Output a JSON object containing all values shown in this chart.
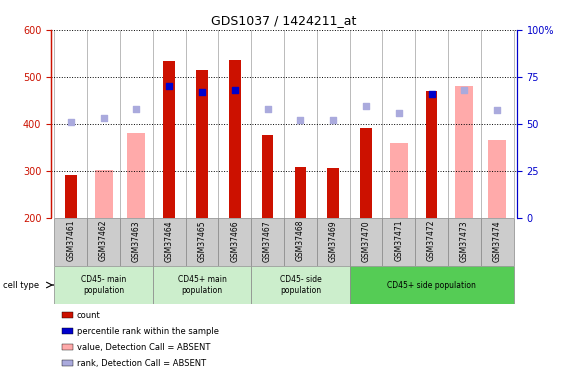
{
  "title": "GDS1037 / 1424211_at",
  "samples": [
    "GSM37461",
    "GSM37462",
    "GSM37463",
    "GSM37464",
    "GSM37465",
    "GSM37466",
    "GSM37467",
    "GSM37468",
    "GSM37469",
    "GSM37470",
    "GSM37471",
    "GSM37472",
    "GSM37473",
    "GSM37474"
  ],
  "count_values": [
    290,
    null,
    null,
    533,
    515,
    535,
    375,
    308,
    305,
    392,
    null,
    470,
    null,
    null
  ],
  "absent_values": [
    null,
    302,
    380,
    null,
    null,
    null,
    null,
    null,
    null,
    null,
    360,
    null,
    480,
    366
  ],
  "rank_present": [
    null,
    null,
    null,
    480,
    468,
    472,
    null,
    null,
    null,
    null,
    null,
    464,
    null,
    null
  ],
  "rank_absent": [
    403,
    412,
    432,
    null,
    null,
    null,
    432,
    407,
    407,
    438,
    422,
    null,
    472,
    430
  ],
  "ylim_left": [
    200,
    600
  ],
  "ylim_right": [
    0,
    100
  ],
  "yticks_left": [
    200,
    300,
    400,
    500,
    600
  ],
  "yticks_right": [
    0,
    25,
    50,
    75,
    100
  ],
  "count_bar_width": 0.35,
  "absent_bar_width": 0.55,
  "cell_type_groups": [
    {
      "label": "CD45- main\npopulation",
      "start": 0,
      "end": 2,
      "color": "#cceecc"
    },
    {
      "label": "CD45+ main\npopulation",
      "start": 3,
      "end": 5,
      "color": "#cceecc"
    },
    {
      "label": "CD45- side\npopulation",
      "start": 6,
      "end": 8,
      "color": "#cceecc"
    },
    {
      "label": "CD45+ side population",
      "start": 9,
      "end": 13,
      "color": "#55cc55"
    }
  ],
  "colors": {
    "count_bar": "#cc1100",
    "absent_bar": "#ffaaaa",
    "rank_present_dot": "#0000cc",
    "rank_absent_dot": "#aaaadd",
    "left_axis_color": "#cc1100",
    "right_axis_color": "#0000cc",
    "grid_color": "#000000",
    "sample_bg": "#cccccc",
    "divider": "#888888"
  },
  "legend_items": [
    {
      "label": "count",
      "color": "#cc1100"
    },
    {
      "label": "percentile rank within the sample",
      "color": "#0000cc"
    },
    {
      "label": "value, Detection Call = ABSENT",
      "color": "#ffaaaa"
    },
    {
      "label": "rank, Detection Call = ABSENT",
      "color": "#aaaadd"
    }
  ]
}
